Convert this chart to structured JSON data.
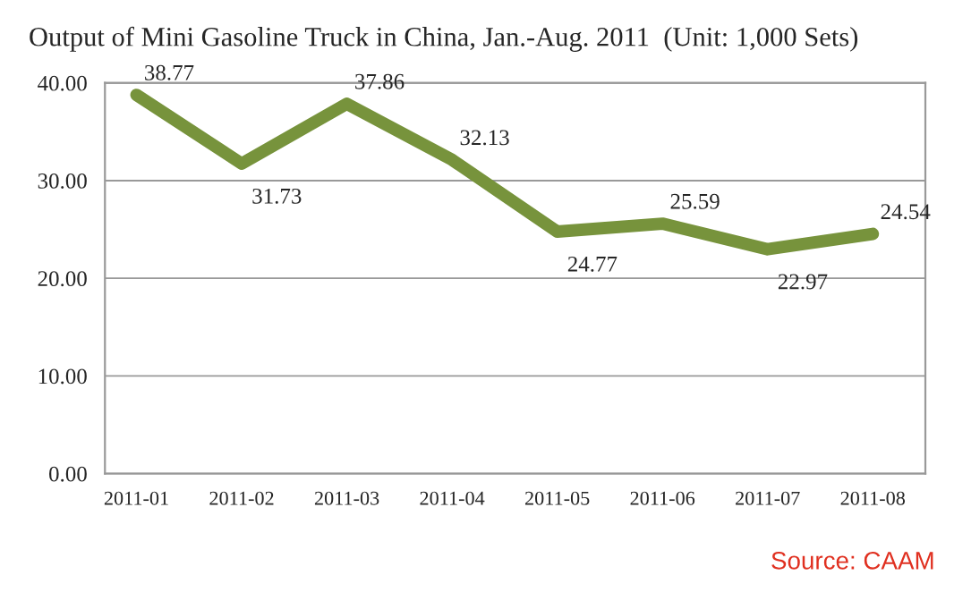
{
  "chart_data": {
    "type": "line",
    "title": "Output of Mini Gasoline Truck in China, Jan.-Aug. 2011  (Unit: 1,000 Sets)",
    "categories": [
      "2011-01",
      "2011-02",
      "2011-03",
      "2011-04",
      "2011-05",
      "2011-06",
      "2011-07",
      "2011-08"
    ],
    "series": [
      {
        "color": "#77933c",
        "values": [
          38.77,
          31.73,
          37.86,
          32.13,
          24.77,
          25.59,
          22.97,
          24.54
        ]
      }
    ],
    "ylim": [
      0,
      40
    ],
    "yticks": [
      {
        "value": 0,
        "label": "0.00"
      },
      {
        "value": 10,
        "label": "10.00"
      },
      {
        "value": 20,
        "label": "20.00"
      },
      {
        "value": 30,
        "label": "30.00"
      },
      {
        "value": 40,
        "label": "40.00"
      }
    ],
    "grid": "y",
    "data_labels": true,
    "marker": "none",
    "line_style": "solid",
    "annotations": [
      "Source: CAAM"
    ]
  }
}
